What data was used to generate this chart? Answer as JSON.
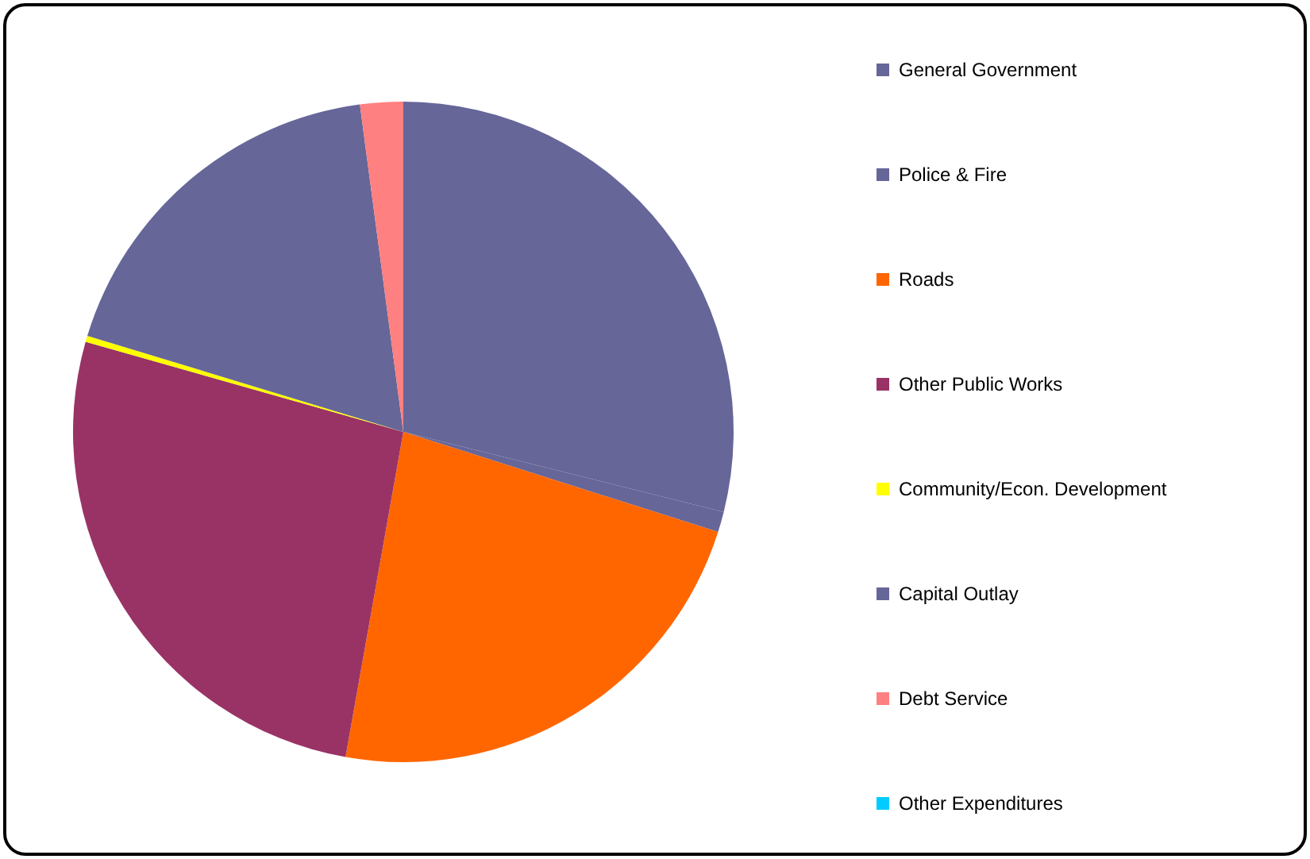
{
  "chart_data": {
    "type": "pie",
    "categories": [
      "General Government",
      "Police & Fire",
      "Roads",
      "Other Public Works",
      "Community/Econ. Development",
      "Capital Outlay",
      "Debt Service",
      "Other Expenditures"
    ],
    "values": [
      28.9,
      1.0,
      22.9,
      26.6,
      0.3,
      18.2,
      2.1,
      0
    ],
    "colors": [
      "#666699",
      "#666699",
      "#ff6600",
      "#993366",
      "#ffff00",
      "#666699",
      "#ff8080",
      "#00ccff"
    ],
    "legend": "right"
  }
}
